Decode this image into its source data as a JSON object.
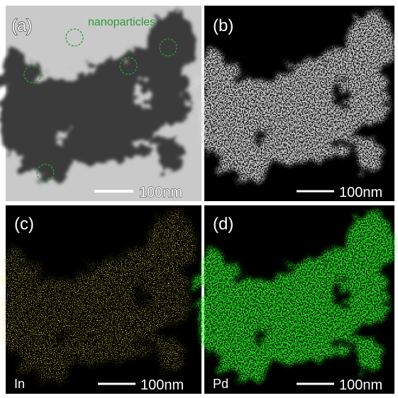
{
  "panels": [
    {
      "label": "(a)",
      "annotation": "nanoparticles",
      "scale_bar": "100nm"
    },
    {
      "label": "(b)",
      "scale_bar": "100nm"
    },
    {
      "label": "(c)",
      "element": "In",
      "scale_bar": "100nm"
    },
    {
      "label": "(d)",
      "element": "Pd",
      "scale_bar": "100nm"
    }
  ]
}
